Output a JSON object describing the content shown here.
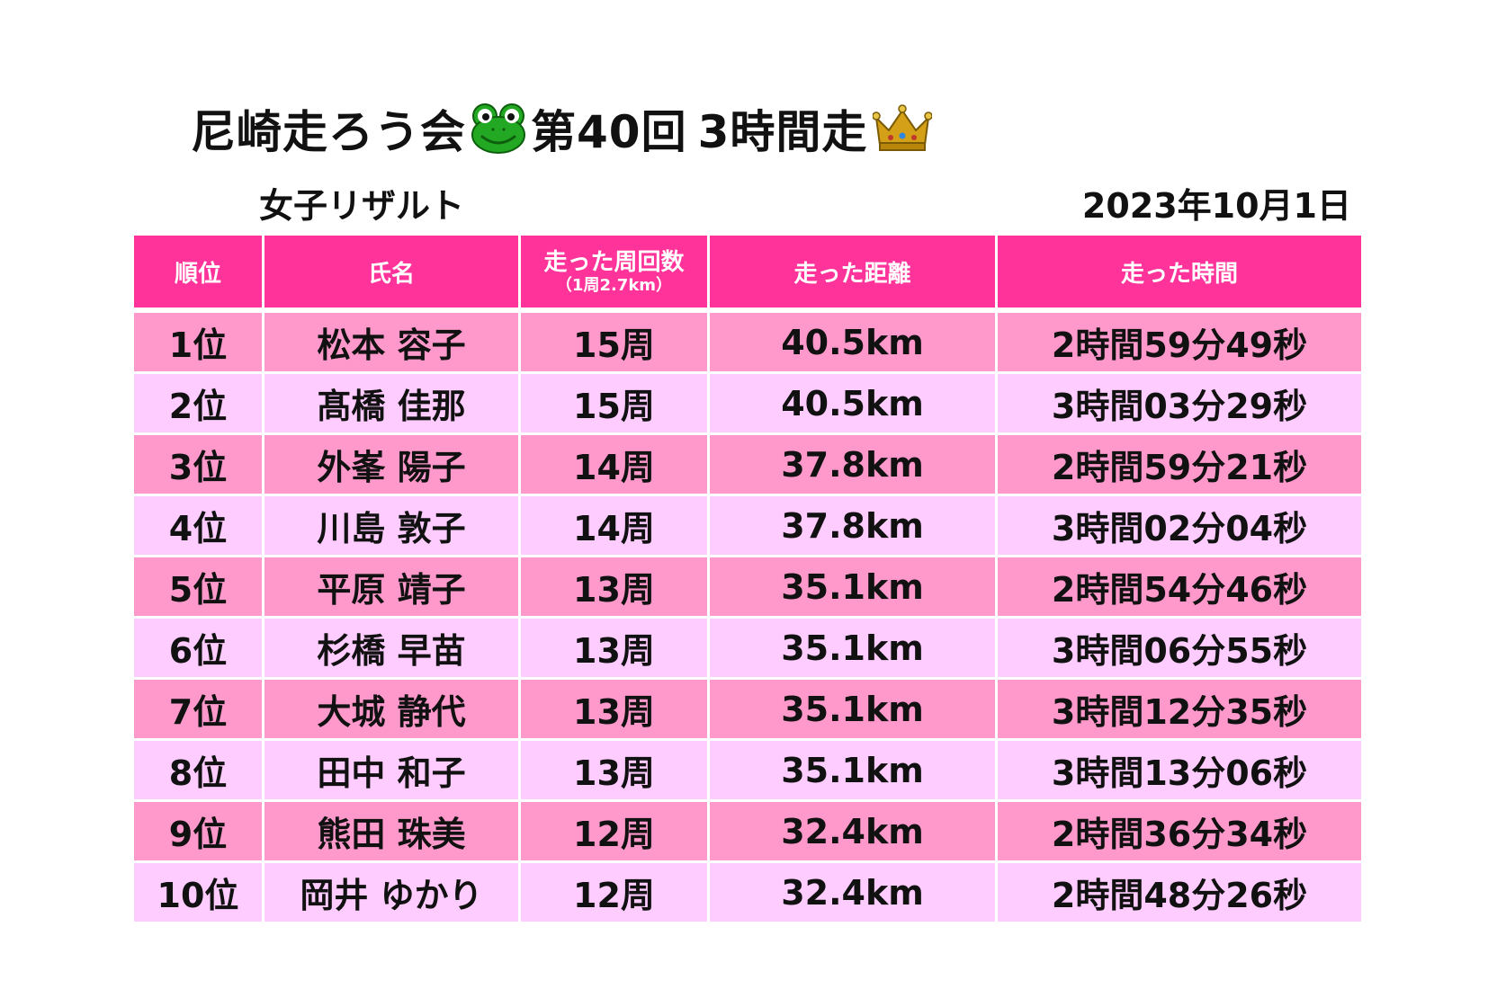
{
  "title": {
    "part1": "尼崎走ろう会",
    "part2": "第40回",
    "part3": "3時間走",
    "frog_icon": "frog-face-emoji",
    "crown_icon": "crown-emoji"
  },
  "subtitle": "女子リザルト",
  "date": "2023年10月1日",
  "table": {
    "headers": {
      "rank": "順位",
      "name": "氏名",
      "laps": "走った周回数",
      "laps_note": "（1周2.7km）",
      "distance": "走った距離",
      "time": "走った時間"
    },
    "rows": [
      {
        "rank": "1位",
        "name": "松本 容子",
        "laps": "15周",
        "distance": "40.5km",
        "time": "2時間59分49秒"
      },
      {
        "rank": "2位",
        "name": "髙橋 佳那",
        "laps": "15周",
        "distance": "40.5km",
        "time": "3時間03分29秒"
      },
      {
        "rank": "3位",
        "name": "外峯 陽子",
        "laps": "14周",
        "distance": "37.8km",
        "time": "2時間59分21秒"
      },
      {
        "rank": "4位",
        "name": "川島 敦子",
        "laps": "14周",
        "distance": "37.8km",
        "time": "3時間02分04秒"
      },
      {
        "rank": "5位",
        "name": "平原 靖子",
        "laps": "13周",
        "distance": "35.1km",
        "time": "2時間54分46秒"
      },
      {
        "rank": "6位",
        "name": "杉橋 早苗",
        "laps": "13周",
        "distance": "35.1km",
        "time": "3時間06分55秒"
      },
      {
        "rank": "7位",
        "name": "大城 静代",
        "laps": "13周",
        "distance": "35.1km",
        "time": "3時間12分35秒"
      },
      {
        "rank": "8位",
        "name": "田中 和子",
        "laps": "13周",
        "distance": "35.1km",
        "time": "3時間13分06秒"
      },
      {
        "rank": "9位",
        "name": "熊田 珠美",
        "laps": "12周",
        "distance": "32.4km",
        "time": "2時間36分34秒"
      },
      {
        "rank": "10位",
        "name": "岡井 ゆかり",
        "laps": "12周",
        "distance": "32.4km",
        "time": "2時間48分26秒"
      }
    ]
  },
  "colors": {
    "header_bg": "#ff3399",
    "row_odd_bg": "#ff99cc",
    "row_even_bg": "#ffccff"
  }
}
